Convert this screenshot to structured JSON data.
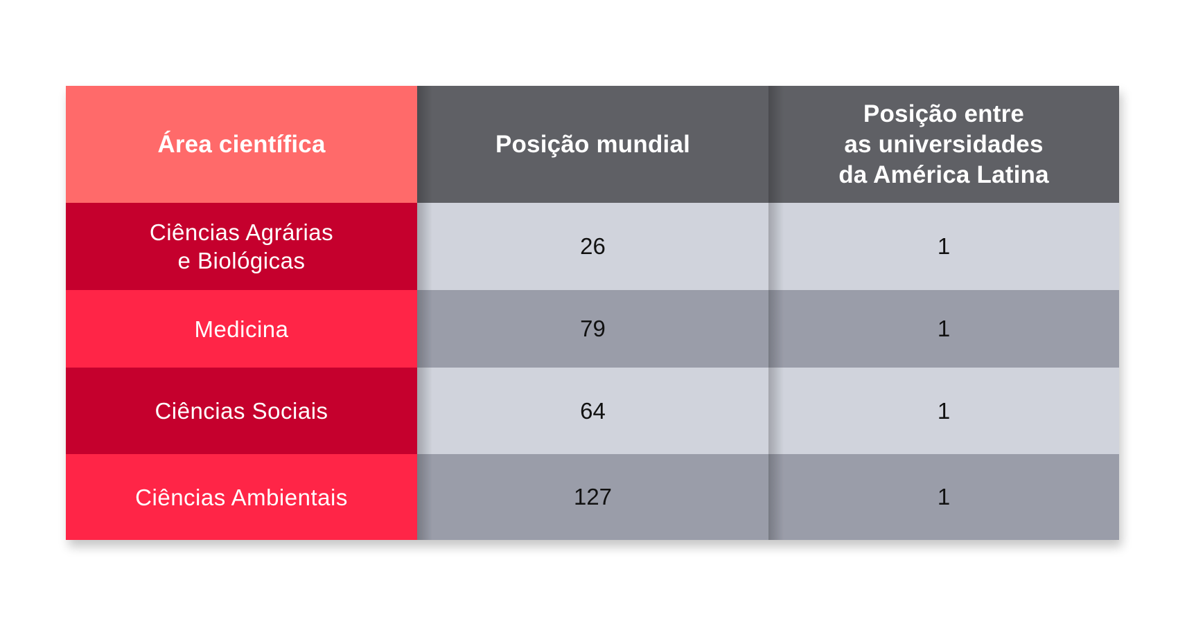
{
  "chart_data": {
    "type": "table",
    "columns": [
      "Área científica",
      "Posição mundial",
      "Posição entre\nas universidades\nda América Latina"
    ],
    "rows": [
      {
        "area": "Ciências Agrárias\ne Biológicas",
        "world": "26",
        "latam": "1"
      },
      {
        "area": "Medicina",
        "world": "79",
        "latam": "1"
      },
      {
        "area": "Ciências Sociais",
        "world": "64",
        "latam": "1"
      },
      {
        "area": "Ciências Ambientais",
        "world": "127",
        "latam": "1"
      }
    ]
  },
  "colors": {
    "header_area": "#ff6a6a",
    "header_dark": "#5f6065",
    "area_dark": "#c5002d",
    "area_bright": "#ff2547",
    "value_light": "#d0d3dc",
    "value_dark": "#9a9da9"
  }
}
